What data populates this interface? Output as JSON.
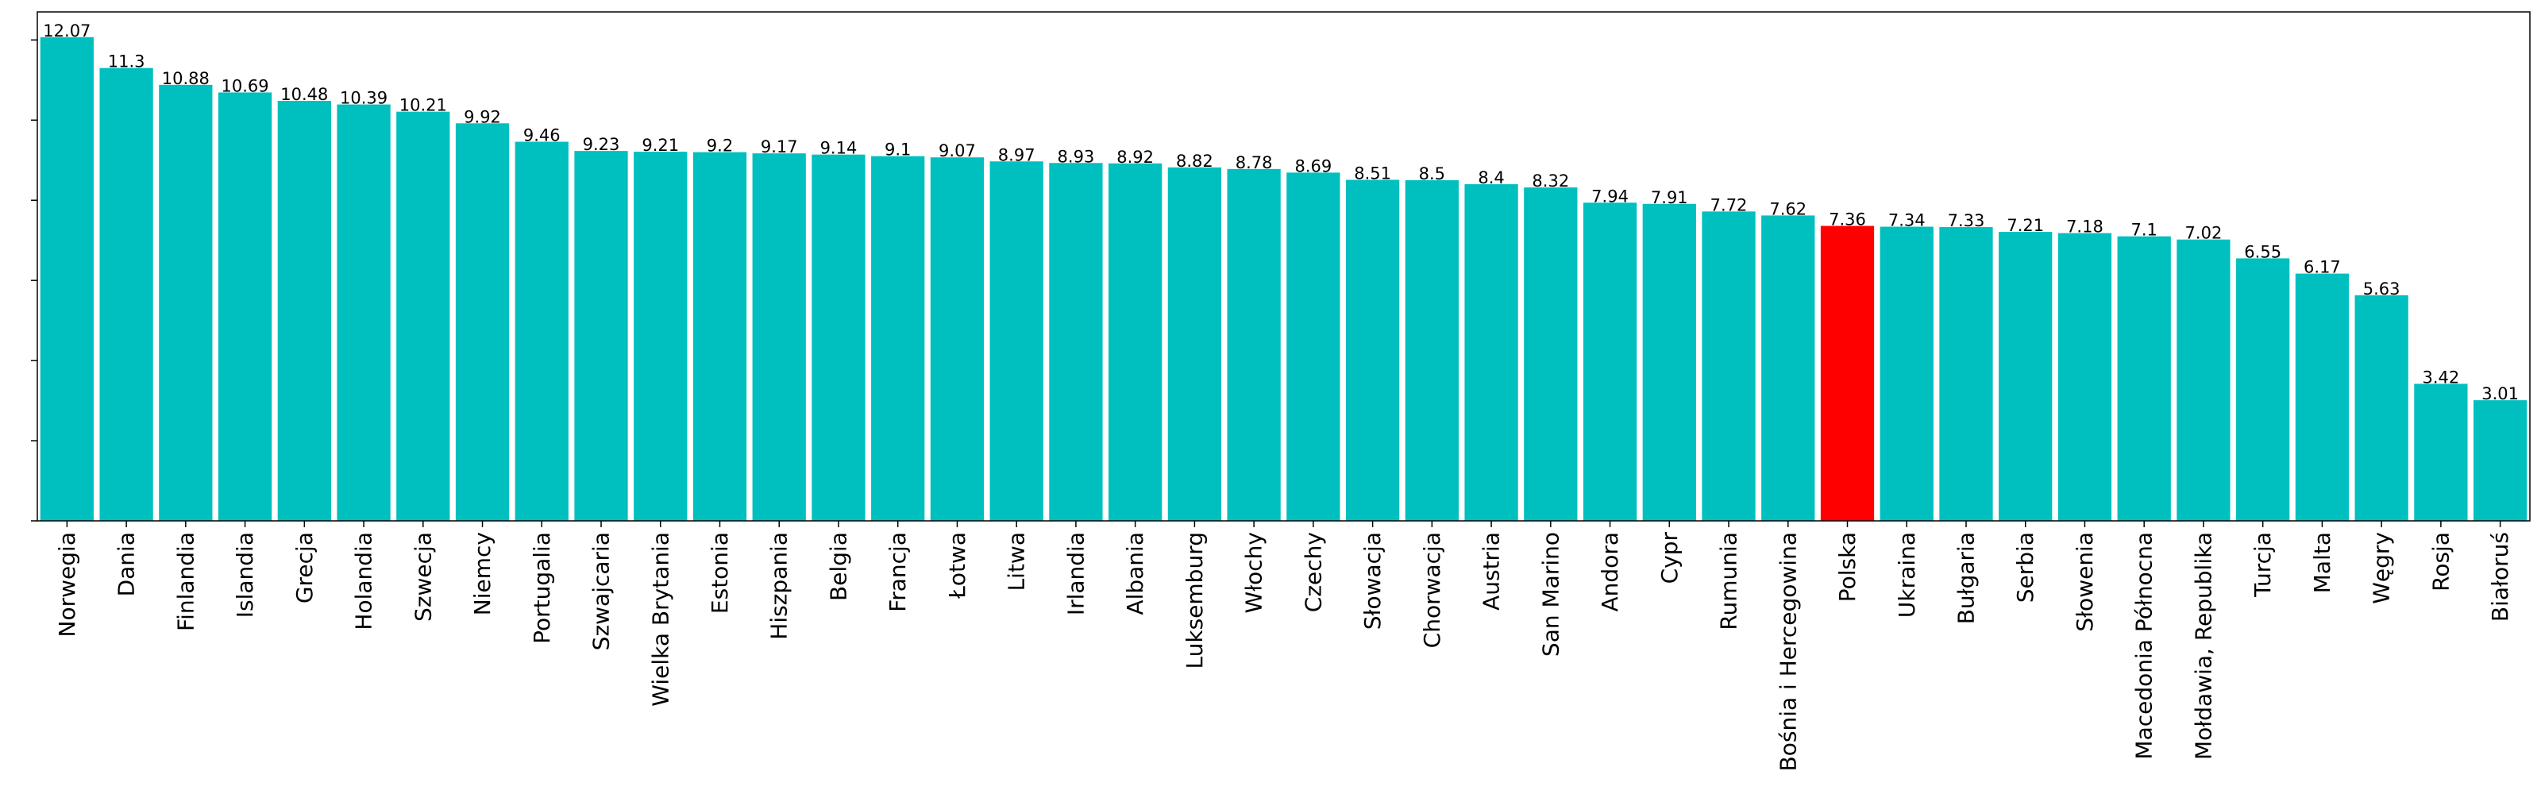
{
  "chart_data": {
    "type": "bar",
    "title": "",
    "xlabel": "",
    "ylabel": "",
    "ylim": [
      0,
      12.7
    ],
    "yticks": [
      0,
      2,
      4,
      6,
      8,
      10,
      12
    ],
    "ytick_labels_visible": false,
    "grid": false,
    "legend": "none",
    "bar_color": "#00bfbf",
    "highlight_color": "#ff0000",
    "highlight_category": "Polska",
    "categories": [
      "Norwegia",
      "Dania",
      "Finlandia",
      "Islandia",
      "Grecja",
      "Holandia",
      "Szwecja",
      "Niemcy",
      "Portugalia",
      "Szwajcaria",
      "Wielka Brytania",
      "Estonia",
      "Hiszpania",
      "Belgia",
      "Francja",
      "Łotwa",
      "Litwa",
      "Irlandia",
      "Albania",
      "Luksemburg",
      "Włochy",
      "Czechy",
      "Słowacja",
      "Chorwacja",
      "Austria",
      "San Marino",
      "Andora",
      "Cypr",
      "Rumunia",
      "Bośnia i Hercegowina",
      "Polska",
      "Ukraina",
      "Bułgaria",
      "Serbia",
      "Słowenia",
      "Macedonia Północna",
      "Mołdawia, Republika",
      "Turcja",
      "Malta",
      "Węgry",
      "Rosja",
      "Białoruś"
    ],
    "values": [
      12.07,
      11.3,
      10.88,
      10.69,
      10.48,
      10.39,
      10.21,
      9.92,
      9.46,
      9.23,
      9.21,
      9.2,
      9.17,
      9.14,
      9.1,
      9.07,
      8.97,
      8.93,
      8.92,
      8.82,
      8.78,
      8.69,
      8.51,
      8.5,
      8.4,
      8.32,
      7.94,
      7.91,
      7.72,
      7.62,
      7.36,
      7.34,
      7.33,
      7.21,
      7.18,
      7.1,
      7.02,
      6.55,
      6.17,
      5.63,
      3.42,
      3.01
    ],
    "value_labels": [
      "12.07",
      "11.3",
      "10.88",
      "10.69",
      "10.48",
      "10.39",
      "10.21",
      "9.92",
      "9.46",
      "9.23",
      "9.21",
      "9.2",
      "9.17",
      "9.14",
      "9.1",
      "9.07",
      "8.97",
      "8.93",
      "8.92",
      "8.82",
      "8.78",
      "8.69",
      "8.51",
      "8.5",
      "8.4",
      "8.32",
      "7.94",
      "7.91",
      "7.72",
      "7.62",
      "7.36",
      "7.34",
      "7.33",
      "7.21",
      "7.18",
      "7.1",
      "7.02",
      "6.55",
      "6.17",
      "5.63",
      "3.42",
      "3.01"
    ]
  }
}
